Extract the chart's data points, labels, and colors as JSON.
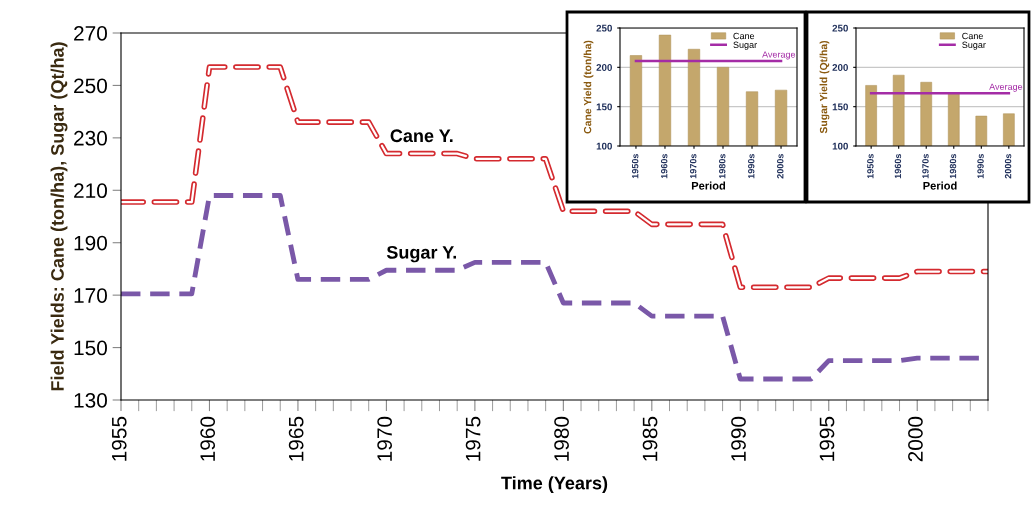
{
  "chart_data": [
    {
      "type": "line",
      "xlabel": "Time (Years)",
      "ylabel": "Field Yields: Cane (ton/ha), Sugar (Qt/ha)",
      "xlim": [
        1955,
        2004
      ],
      "xticks": [
        1955,
        1960,
        1965,
        1970,
        1975,
        1980,
        1985,
        1990,
        1995,
        2000
      ],
      "ylim": [
        130,
        270
      ],
      "yticks": [
        130,
        150,
        170,
        190,
        210,
        230,
        250,
        270
      ],
      "grid": false,
      "legend": false,
      "line_style": "dashed",
      "marker": "none",
      "series": [
        {
          "name": "Cane Y.",
          "color": "#d42a2f",
          "x": [
            1955,
            1959,
            1960,
            1964,
            1965,
            1969,
            1970,
            1974,
            1975,
            1979,
            1980,
            1984,
            1985,
            1989,
            1990,
            1994,
            1995,
            1999,
            2000,
            2004
          ],
          "values": [
            205.5,
            205.5,
            257,
            257,
            236,
            236,
            224,
            224,
            222,
            222,
            202,
            202,
            197,
            197,
            173,
            173,
            176.5,
            176.5,
            179,
            179
          ]
        },
        {
          "name": "Sugar Y.",
          "color": "#7a58a8",
          "x": [
            1955,
            1959,
            1960,
            1964,
            1965,
            1969,
            1970,
            1974,
            1975,
            1979,
            1980,
            1984,
            1985,
            1989,
            1990,
            1994,
            1995,
            1999,
            2000,
            2004
          ],
          "values": [
            170.5,
            170.5,
            208,
            208,
            176,
            176,
            179.5,
            179.5,
            182.5,
            182.5,
            167,
            167,
            162,
            162,
            138,
            138,
            145,
            145,
            146,
            146
          ]
        }
      ]
    },
    {
      "type": "bar",
      "xlabel": "Period",
      "ylabel": "Cane Yield (ton/ha)",
      "categories": [
        "1950s",
        "1960s",
        "1970s",
        "1980s",
        "1990s",
        "2000s"
      ],
      "ylim": [
        100,
        250
      ],
      "yticks": [
        100,
        150,
        200,
        250
      ],
      "grid": "y",
      "legend": "top right",
      "series": [
        {
          "name": "Cane",
          "type": "bar",
          "color": "#c4a76c",
          "values": [
            215,
            241,
            223,
            200,
            169,
            171
          ]
        },
        {
          "name": "Sugar",
          "type": "line",
          "color": "#a42ca6",
          "values": [
            208,
            208,
            208,
            208,
            208,
            208
          ]
        }
      ],
      "annotations": [
        {
          "text": "Average",
          "x": "2000s",
          "y": 208
        }
      ]
    },
    {
      "type": "bar",
      "xlabel": "Period",
      "ylabel": "Sugar Yield (Qt/ha)",
      "categories": [
        "1950s",
        "1960s",
        "1970s",
        "1980s",
        "1990s",
        "2000s"
      ],
      "ylim": [
        100,
        250
      ],
      "yticks": [
        100,
        150,
        200,
        250
      ],
      "grid": "y",
      "legend": "top right",
      "series": [
        {
          "name": "Cane",
          "type": "bar",
          "color": "#c4a76c",
          "values": [
            177,
            190,
            181,
            167,
            138,
            141
          ]
        },
        {
          "name": "Sugar",
          "type": "line",
          "color": "#a42ca6",
          "values": [
            167,
            167,
            167,
            167,
            167,
            167
          ]
        }
      ],
      "annotations": [
        {
          "text": "Average",
          "x": "2000s",
          "y": 167
        }
      ]
    }
  ]
}
